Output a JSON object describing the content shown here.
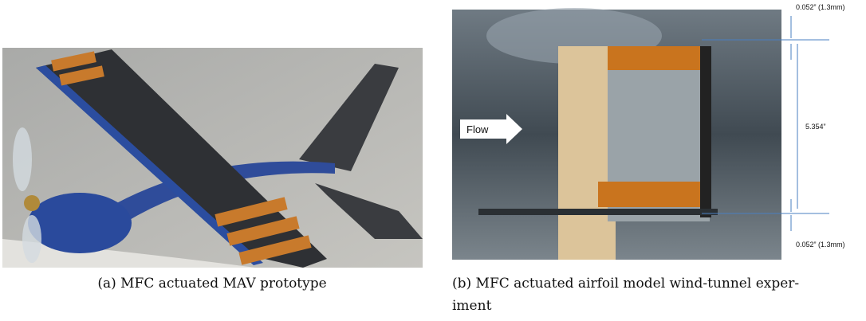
{
  "figure_a": {
    "caption": "(a) MFC actuated MAV prototype"
  },
  "figure_b": {
    "flow_label": "Flow",
    "top_gap": "0.052” (1.3mm)",
    "span": "5.354”",
    "bottom_gap": "0.052” (1.3mm)",
    "caption_lines": [
      "(b) MFC actuated airfoil model wind-tunnel exper-",
      "iment"
    ]
  }
}
